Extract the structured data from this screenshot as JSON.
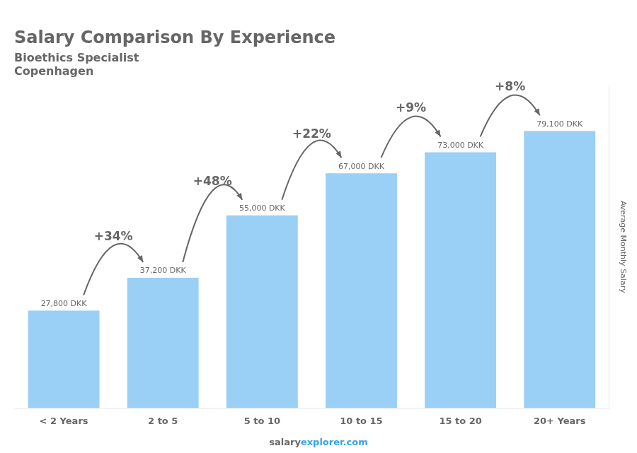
{
  "chart_data": {
    "type": "bar",
    "title": "Salary Comparison By Experience",
    "subtitle": [
      "Bioethics Specialist",
      "Copenhagen"
    ],
    "ylabel": "Average Monthly Salary",
    "categories": [
      "< 2 Years",
      "2 to 5",
      "5 to 10",
      "10 to 15",
      "15 to 20",
      "20+ Years"
    ],
    "values": [
      27800,
      37200,
      55000,
      67000,
      73000,
      79100
    ],
    "value_labels": [
      "27,800 DKK",
      "37,200 DKK",
      "55,000 DKK",
      "67,000 DKK",
      "73,000 DKK",
      "79,100 DKK"
    ],
    "data_labels": true,
    "annotations": [
      {
        "text": "+34%",
        "from": "< 2 Years",
        "to": "2 to 5"
      },
      {
        "text": "+48%",
        "from": "2 to 5",
        "to": "5 to 10"
      },
      {
        "text": "+22%",
        "from": "5 to 10",
        "to": "10 to 15"
      },
      {
        "text": "+9%",
        "from": "10 to 15",
        "to": "15 to 20"
      },
      {
        "text": "+8%",
        "from": "15 to 20",
        "to": "20+ Years"
      }
    ],
    "watermark": [
      "salary",
      "explorer.com"
    ],
    "ylim": [
      0,
      92000
    ],
    "tick_labels": "x",
    "grid": false
  }
}
